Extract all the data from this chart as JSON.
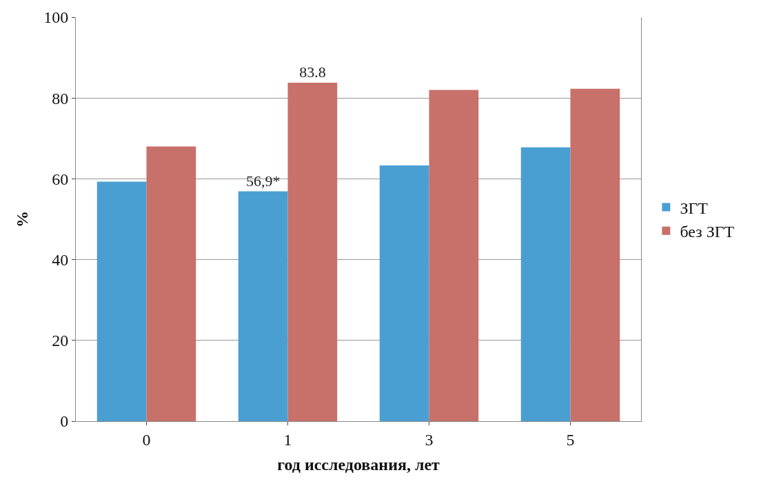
{
  "chart_data": {
    "type": "bar",
    "xlabel": "год исследования, лет",
    "ylabel": "%",
    "categories": [
      "0",
      "1",
      "3",
      "5"
    ],
    "series": [
      {
        "name": "ЗГТ",
        "color": "#4a9fd2",
        "values": [
          59.3,
          56.9,
          63.3,
          67.8
        ],
        "value_labels": [
          null,
          "56,9*",
          null,
          null
        ]
      },
      {
        "name": "без ЗГТ",
        "color": "#c8706a",
        "values": [
          68.0,
          83.8,
          82.0,
          82.3
        ],
        "value_labels": [
          null,
          "83.8",
          null,
          null
        ]
      }
    ],
    "ylim": [
      0,
      100
    ],
    "yticks": [
      0,
      20,
      40,
      60,
      80,
      100
    ],
    "grid": "y",
    "legend": "right"
  }
}
